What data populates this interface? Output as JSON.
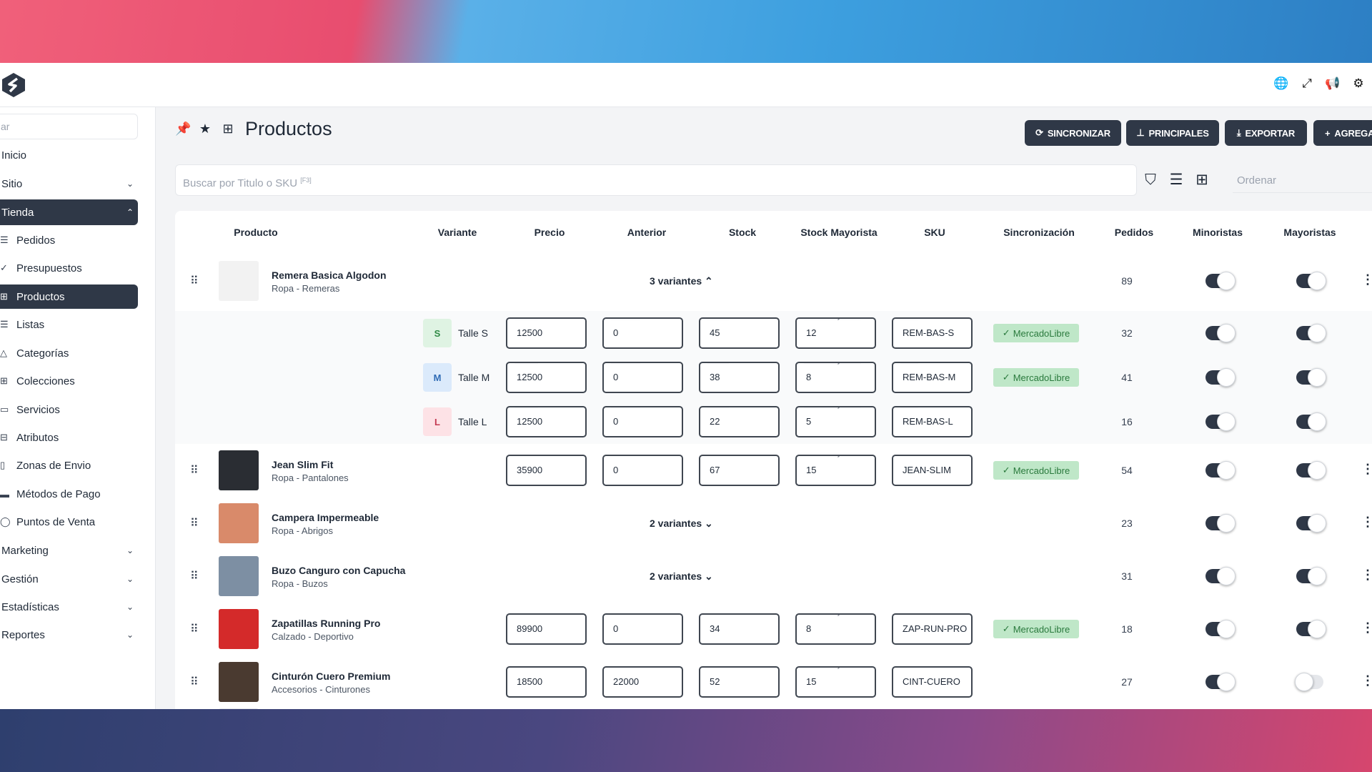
{
  "topbar": {
    "icons": [
      "globe-icon",
      "expand-icon",
      "megaphone-icon",
      "gear-icon"
    ]
  },
  "sidebar": {
    "search_placeholder": "ar",
    "items": [
      {
        "label": "Inicio",
        "type": "top",
        "chevron": ""
      },
      {
        "label": "Sitio",
        "type": "top",
        "chevron": "⌄"
      },
      {
        "label": "Tienda",
        "type": "top",
        "chevron": "⌃",
        "active": true
      },
      {
        "label": "Pedidos",
        "type": "sub",
        "icon": "☰"
      },
      {
        "label": "Presupuestos",
        "type": "sub",
        "icon": "✓"
      },
      {
        "label": "Productos",
        "type": "sub",
        "icon": "⊞",
        "active": true
      },
      {
        "label": "Listas",
        "type": "sub",
        "icon": "☰"
      },
      {
        "label": "Categorías",
        "type": "sub",
        "icon": "△"
      },
      {
        "label": "Colecciones",
        "type": "sub",
        "icon": "⊞"
      },
      {
        "label": "Servicios",
        "type": "sub",
        "icon": "▭"
      },
      {
        "label": "Atributos",
        "type": "sub",
        "icon": "⊟"
      },
      {
        "label": "Zonas de Envio",
        "type": "sub",
        "icon": "▯"
      },
      {
        "label": "Métodos de Pago",
        "type": "sub",
        "icon": "▬"
      },
      {
        "label": "Puntos de Venta",
        "type": "sub",
        "icon": "◯"
      },
      {
        "label": "Marketing",
        "type": "top",
        "chevron": "⌄"
      },
      {
        "label": "Gestión",
        "type": "top",
        "chevron": "⌄"
      },
      {
        "label": "Estadísticas",
        "type": "top",
        "chevron": "⌄"
      },
      {
        "label": "Reportes",
        "type": "top",
        "chevron": "⌄"
      }
    ]
  },
  "header": {
    "title": "Productos",
    "buttons": {
      "sync": "SINCRONIZAR",
      "main": "PRINCIPALES",
      "export": "EXPORTAR",
      "add": "AGREGA"
    }
  },
  "search": {
    "placeholder": "Buscar por Titulo o SKU",
    "shortcut": "[F3]",
    "sort_placeholder": "Ordenar"
  },
  "columns": [
    "Producto",
    "Variante",
    "Precio",
    "Anterior",
    "Stock",
    "Stock Mayorista",
    "SKU",
    "Sincronización",
    "Pedidos",
    "Minoristas",
    "Mayoristas"
  ],
  "field_labels": {
    "precio": "Precio",
    "anterior": "Anterior",
    "stock": "Stock",
    "stock_may": "Stock Mayorista",
    "sku": "SKU"
  },
  "sync_label": "MercadoLibre",
  "products": [
    {
      "name": "Remera Basica Algodon",
      "category": "Ropa - Remeras",
      "variants_label": "3 variantes",
      "expanded": true,
      "pedidos": "89",
      "minoristas": true,
      "mayoristas": true,
      "thumb": "#f2f2f2",
      "variants": [
        {
          "badge": "S",
          "name": "Talle S",
          "precio": "12500",
          "anterior": "0",
          "stock": "45",
          "stock_may": "12",
          "sku": "REM-BAS-S",
          "sync": true,
          "pedidos": "32",
          "minoristas": true,
          "mayoristas": true,
          "badge_bg": "#dff3e3",
          "badge_fg": "#2f8a45"
        },
        {
          "badge": "M",
          "name": "Talle M",
          "precio": "12500",
          "anterior": "0",
          "stock": "38",
          "stock_may": "8",
          "sku": "REM-BAS-M",
          "sync": true,
          "pedidos": "41",
          "minoristas": true,
          "mayoristas": true,
          "badge_bg": "#dbeafb",
          "badge_fg": "#2f6bb5"
        },
        {
          "badge": "L",
          "name": "Talle L",
          "precio": "12500",
          "anterior": "0",
          "stock": "22",
          "stock_may": "5",
          "sku": "REM-BAS-L",
          "sync": false,
          "pedidos": "16",
          "minoristas": true,
          "mayoristas": true,
          "badge_bg": "#fde2e6",
          "badge_fg": "#c43a52"
        }
      ]
    },
    {
      "name": "Jean Slim Fit",
      "category": "Ropa - Pantalones",
      "precio": "35900",
      "anterior": "0",
      "stock": "67",
      "stock_may": "15",
      "sku": "JEAN-SLIM",
      "sync": true,
      "pedidos": "54",
      "minoristas": true,
      "mayoristas": true,
      "thumb": "#2a2d33"
    },
    {
      "name": "Campera Impermeable",
      "category": "Ropa - Abrigos",
      "variants_label": "2 variantes",
      "expanded": false,
      "pedidos": "23",
      "minoristas": true,
      "mayoristas": true,
      "thumb": "#d98a6a"
    },
    {
      "name": "Buzo Canguro con Capucha",
      "category": "Ropa - Buzos",
      "variants_label": "2 variantes",
      "expanded": false,
      "pedidos": "31",
      "minoristas": true,
      "mayoristas": true,
      "thumb": "#7d8fa3"
    },
    {
      "name": "Zapatillas Running Pro",
      "category": "Calzado - Deportivo",
      "precio": "89900",
      "anterior": "0",
      "stock": "34",
      "stock_may": "8",
      "sku": "ZAP-RUN-PRO",
      "sync": true,
      "pedidos": "18",
      "minoristas": true,
      "mayoristas": true,
      "thumb": "#d42a2a"
    },
    {
      "name": "Cinturón Cuero Premium",
      "category": "Accesorios - Cinturones",
      "precio": "18500",
      "anterior": "22000",
      "stock": "52",
      "stock_may": "15",
      "sku": "CINT-CUERO",
      "sync": false,
      "pedidos": "27",
      "minoristas": true,
      "mayoristas": false,
      "thumb": "#4a3a30"
    }
  ],
  "colors": {
    "dark": "#2f3847",
    "sync_bg": "#bfe7c8",
    "sync_fg": "#2a7a3d"
  }
}
